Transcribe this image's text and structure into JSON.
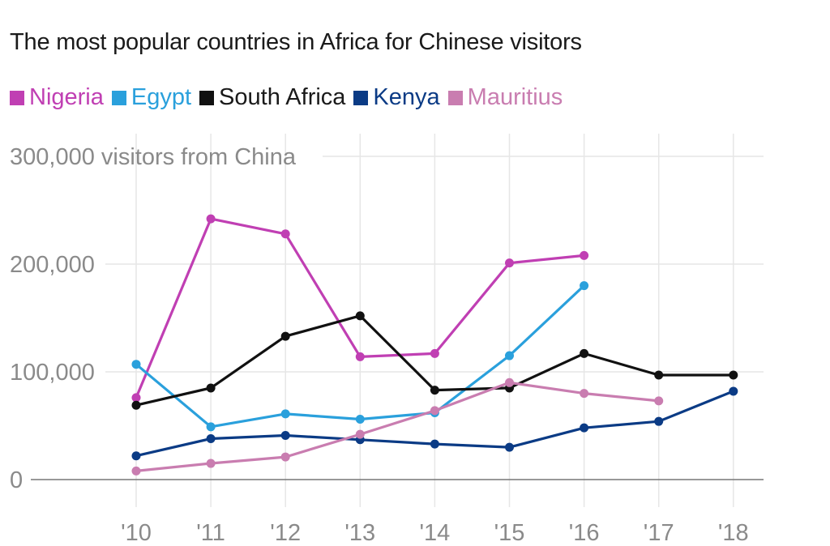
{
  "chart_data": {
    "type": "line",
    "title": "The most popular countries in Africa for Chinese visitors",
    "ylabel": "300,000 visitors from China",
    "xlabel": "",
    "x": [
      "'10",
      "'11",
      "'12",
      "'13",
      "'14",
      "'15",
      "'16",
      "'17",
      "'18"
    ],
    "y_ticks": [
      0,
      100000,
      200000,
      300000
    ],
    "y_tick_labels": [
      "0",
      "100,000",
      "200,000",
      "300,000 visitors from China"
    ],
    "ylim": [
      0,
      300000
    ],
    "grid": true,
    "legend_position": "top-left",
    "series": [
      {
        "name": "Nigeria",
        "color": "#c03fb3",
        "values": [
          76000,
          242000,
          228000,
          114000,
          117000,
          201000,
          208000,
          null,
          null
        ]
      },
      {
        "name": "Egypt",
        "color": "#2aa0dc",
        "values": [
          107000,
          49000,
          61000,
          56000,
          62000,
          115000,
          180000,
          null,
          null
        ]
      },
      {
        "name": "South Africa",
        "color": "#111111",
        "values": [
          69000,
          85000,
          133000,
          152000,
          83000,
          85000,
          117000,
          97000,
          97000
        ]
      },
      {
        "name": "Kenya",
        "color": "#0b3b85",
        "values": [
          22000,
          38000,
          41000,
          37000,
          33000,
          30000,
          48000,
          54000,
          82000
        ]
      },
      {
        "name": "Mauritius",
        "color": "#c97db0",
        "values": [
          8000,
          15000,
          21000,
          42000,
          64000,
          90000,
          80000,
          73000,
          null
        ]
      }
    ]
  }
}
